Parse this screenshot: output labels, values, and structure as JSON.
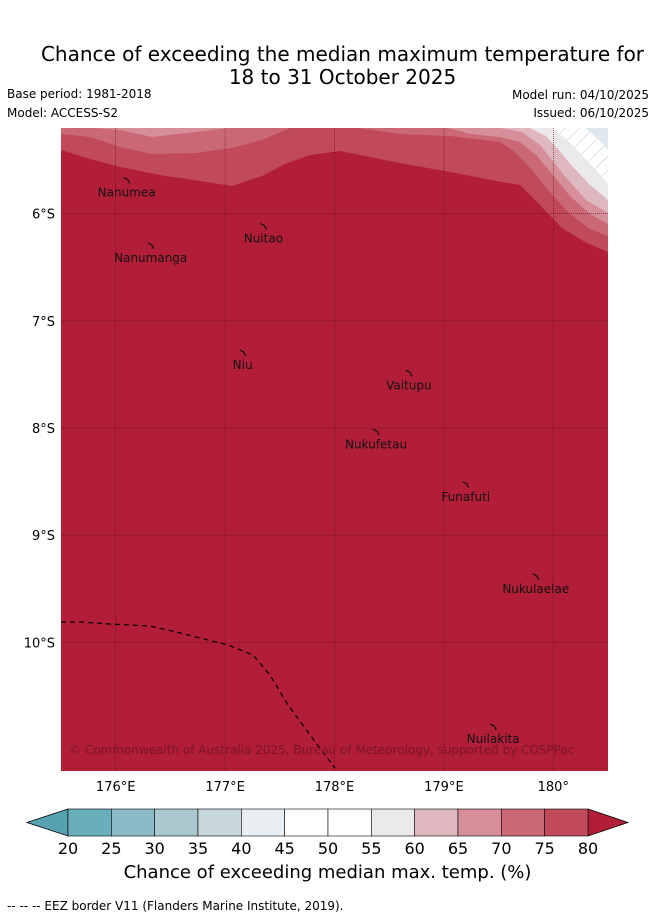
{
  "title_line1": "Chance of exceeding the median maximum temperature for",
  "title_line2": "18 to 31 October 2025",
  "base_period": "Base period: 1981-2018",
  "model": "Model: ACCESS-S2",
  "model_run": "Model run: 04/10/2025",
  "issued": "Issued: 06/10/2025",
  "map": {
    "lon_range": [
      175.5,
      180.5
    ],
    "lat_range": [
      -11.2,
      -5.2
    ],
    "lat_ticks": [
      {
        "value": -6,
        "label": "6°S"
      },
      {
        "value": -7,
        "label": "7°S"
      },
      {
        "value": -8,
        "label": "8°S"
      },
      {
        "value": -9,
        "label": "9°S"
      },
      {
        "value": -10,
        "label": "10°S"
      }
    ],
    "lon_ticks": [
      {
        "value": 176,
        "label": "176°E"
      },
      {
        "value": 177,
        "label": "177°E"
      },
      {
        "value": 178,
        "label": "178°E"
      },
      {
        "value": 179,
        "label": "179°E"
      },
      {
        "value": 180,
        "label": "180°"
      }
    ],
    "islands": [
      {
        "name": "Nanumea",
        "lon": 176.1,
        "lat": -5.68
      },
      {
        "name": "Nuitao",
        "lon": 177.35,
        "lat": -6.11
      },
      {
        "name": "Nanumanga",
        "lon": 176.32,
        "lat": -6.29
      },
      {
        "name": "Niu",
        "lon": 177.16,
        "lat": -7.29
      },
      {
        "name": "Vaitupu",
        "lon": 178.68,
        "lat": -7.48
      },
      {
        "name": "Nukufetau",
        "lon": 178.38,
        "lat": -8.03
      },
      {
        "name": "Funafuti",
        "lon": 179.2,
        "lat": -8.52
      },
      {
        "name": "Nukulaelae",
        "lon": 179.84,
        "lat": -9.38
      },
      {
        "name": "Nuilakita",
        "lon": 179.45,
        "lat": -10.78
      }
    ],
    "copyright": "© Commonwealth of Australia 2025, Bureau of Meteorology, supported by COSPPac"
  },
  "colorbar": {
    "ticks": [
      "20",
      "25",
      "30",
      "35",
      "40",
      "45",
      "50",
      "55",
      "60",
      "65",
      "70",
      "75",
      "80"
    ],
    "colors": [
      "#6aaebb",
      "#8bbbc6",
      "#a9c9cf",
      "#c8d8dd",
      "#e8eef1",
      "#ffffff",
      "#ffffff",
      "#ebe9ec",
      "#dfb7be",
      "#d68e99",
      "#cb6875",
      "#c04a59"
    ],
    "under_color": "#56a2b1",
    "over_color": "#b21e38",
    "label": "Chance of exceeding median max. temp. (%)"
  },
  "footnote": "--  --  -- EEZ border V11 (Flanders Marine Institute, 2019)."
}
